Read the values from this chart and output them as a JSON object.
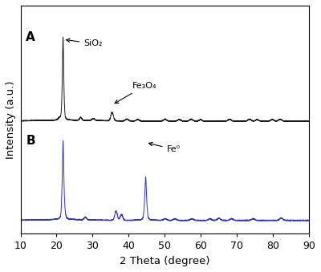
{
  "title": "",
  "xlabel": "2 Theta (degree)",
  "ylabel": "Intensity (a.u.)",
  "xlim": [
    10,
    90
  ],
  "x_ticks": [
    10,
    20,
    30,
    40,
    50,
    60,
    70,
    80,
    90
  ],
  "label_A": "A",
  "label_B": "B",
  "color_A": "#1a1a1a",
  "color_B": "#3333bb",
  "background": "#ffffff",
  "annotation_SiO2": "SiO₂",
  "annotation_Fe3O4": "Fe₃O₄",
  "annotation_Fe0": "Fe⁰"
}
